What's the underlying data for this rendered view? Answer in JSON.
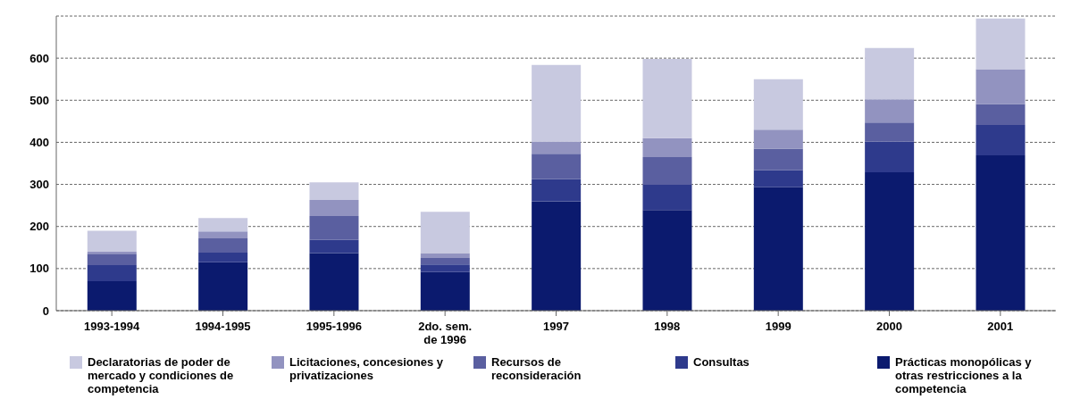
{
  "chart_data": {
    "type": "bar",
    "stacked": true,
    "categories": [
      "1993-1994",
      "1994-1995",
      "1995-1996",
      "2do. sem. de 1996",
      "1997",
      "1998",
      "1999",
      "2000",
      "2001"
    ],
    "series": [
      {
        "name": "Prácticas monopólicas y otras restricciones a la competencia",
        "color": "#0b1a6e",
        "values": [
          70,
          115,
          137,
          92,
          260,
          239,
          293,
          329,
          369
        ]
      },
      {
        "name": "Consultas",
        "color": "#2e3a8c",
        "values": [
          38,
          23,
          31,
          18,
          53,
          60,
          41,
          73,
          72
        ]
      },
      {
        "name": "Recursos de reconsideración",
        "color": "#5a5fa0",
        "values": [
          27,
          34,
          57,
          15,
          60,
          66,
          51,
          45,
          50
        ]
      },
      {
        "name": "Licitaciones, concesiones y privatizaciones",
        "color": "#9293c0",
        "values": [
          5,
          16,
          38,
          12,
          29,
          45,
          45,
          55,
          83
        ]
      },
      {
        "name": "Declaratorias de poder de mercado y condiciones de competencia",
        "color": "#c8c9e0",
        "values": [
          50,
          32,
          42,
          98,
          182,
          188,
          120,
          122,
          120
        ]
      }
    ],
    "ylim": [
      0,
      700
    ],
    "yticks": [
      0,
      100,
      200,
      300,
      400,
      500,
      600
    ],
    "grid": "y",
    "legend": "bottom"
  }
}
